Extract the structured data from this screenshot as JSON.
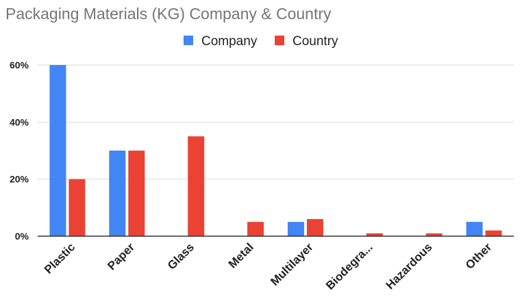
{
  "chart_data": {
    "type": "bar",
    "title": "Packaging Materials (KG)  Company & Country",
    "categories": [
      "Plastic",
      "Paper",
      "Glass",
      "Metal",
      "Multilayer",
      "Biodegra...",
      "Hazardous",
      "Other"
    ],
    "series": [
      {
        "name": "Company",
        "color": "#4285f4",
        "values": [
          60,
          30,
          0,
          0,
          5,
          0,
          0,
          5
        ]
      },
      {
        "name": "Country",
        "color": "#ea4335",
        "values": [
          20,
          30,
          35,
          5,
          6,
          1,
          1,
          2
        ]
      }
    ],
    "ylim": [
      0,
      60
    ],
    "yticks": [
      0,
      20,
      40,
      60
    ],
    "ytick_labels": [
      "0%",
      "20%",
      "40%",
      "60%"
    ],
    "xlabel": "",
    "ylabel": "",
    "grid": true,
    "legend_position": "top-center"
  }
}
